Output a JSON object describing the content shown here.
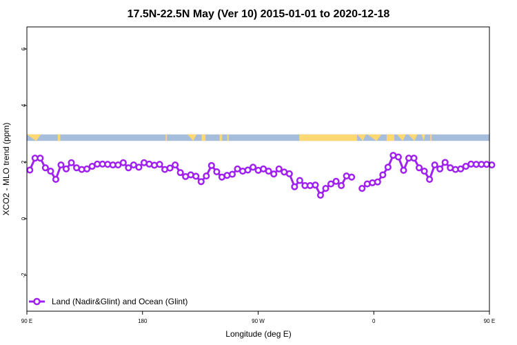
{
  "chart_data": {
    "type": "line",
    "title": "17.5N-22.5N May (Ver 10)   2015-01-01 to 2020-12-18",
    "xlabel": "Longitude (deg E)",
    "ylabel": "XCO2 - MLO trend (ppm)",
    "xlim": [
      90,
      450
    ],
    "ylim": [
      -3.27,
      6.78
    ],
    "x_ticks": [
      90,
      180,
      270,
      360,
      450
    ],
    "x_tick_labels": [
      "90 E",
      "180",
      "90 W",
      "0",
      "90 E",
      "180"
    ],
    "x_tick_values": [
      90,
      180,
      270,
      360,
      450,
      540
    ],
    "y_ticks": [
      -2,
      0,
      2,
      4,
      6
    ],
    "y_tick_labels": [
      "-2",
      "0",
      "2",
      "4",
      "6"
    ],
    "legend_placement": "bottom-left",
    "grid": false,
    "series": [
      {
        "name": "Land (Nadir&Glint) and Ocean (Glint)",
        "color": "#a020f0",
        "x_start": 92.3,
        "x_step": 4.04,
        "values": [
          1.72,
          2.14,
          2.14,
          1.8,
          1.68,
          1.39,
          1.9,
          1.76,
          1.98,
          1.8,
          1.74,
          1.76,
          1.85,
          1.93,
          1.93,
          1.92,
          1.9,
          1.9,
          1.98,
          1.8,
          1.9,
          1.82,
          1.98,
          1.93,
          1.89,
          1.92,
          1.74,
          1.79,
          1.9,
          1.63,
          1.49,
          1.55,
          1.5,
          1.31,
          1.51,
          1.88,
          1.66,
          1.47,
          1.53,
          1.57,
          1.76,
          1.68,
          1.72,
          1.82,
          1.71,
          1.76,
          1.68,
          1.58,
          1.76,
          1.65,
          1.59,
          1.13,
          1.35,
          1.17,
          1.17,
          1.19,
          0.83,
          1.07,
          1.23,
          1.32,
          1.17,
          1.51,
          1.47,
          null,
          1.07,
          1.23,
          1.27,
          1.3,
          1.55,
          1.82,
          2.24,
          2.18,
          1.71,
          2.14,
          2.14,
          1.8,
          1.68,
          1.39,
          1.9,
          1.76,
          1.99,
          1.8,
          1.74,
          1.76,
          1.85,
          1.93,
          1.92,
          1.92,
          1.92,
          1.9
        ]
      }
    ],
    "surface_strip": {
      "ocean_color": "#a6bddb",
      "land_color": "#fdd873"
    }
  }
}
